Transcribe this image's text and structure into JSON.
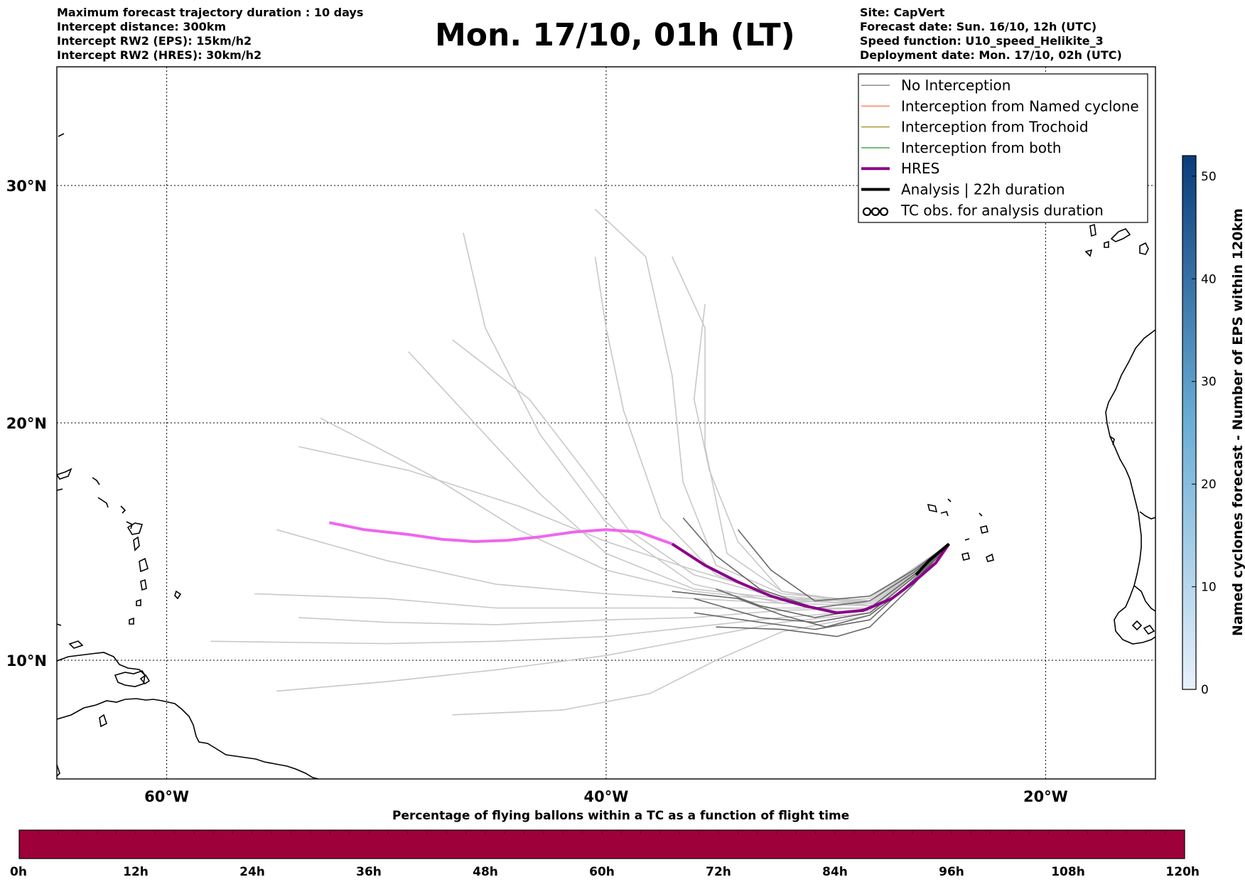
{
  "header_left": [
    "Maximum forecast trajectory duration : 10 days",
    "Intercept distance: 300km",
    "Intercept RW2 (EPS):  15km/h2",
    "Intercept RW2 (HRES): 30km/h2"
  ],
  "title": "Mon. 17/10, 01h (LT)",
  "header_right": [
    "Site: CapVert",
    "Forecast date: Sun. 16/10, 12h (UTC)",
    "Speed function: U10_speed_Helikite_3",
    "Deployment date: Mon. 17/10, 02h (UTC)"
  ],
  "map": {
    "lon_ticks": [
      "60°W",
      "40°W",
      "20°W"
    ],
    "lat_ticks": [
      "30°N",
      "20°N",
      "10°N"
    ],
    "lon_range": [
      -65,
      -15
    ],
    "lat_range": [
      5,
      35
    ],
    "grid_lons": [
      -60,
      -40,
      -20
    ],
    "grid_lats": [
      10,
      20,
      30
    ]
  },
  "legend": [
    {
      "label": "No Interception",
      "color": "#8c8c8c",
      "icon": "line-thin"
    },
    {
      "label": "Interception from Named cyclone",
      "color": "#ff7f50",
      "icon": "line-thin"
    },
    {
      "label": "Interception from Trochoid",
      "color": "#a0902a",
      "icon": "line-thin"
    },
    {
      "label": "Interception from both",
      "color": "#3aa03a",
      "icon": "line-thin"
    },
    {
      "label": "HRES",
      "color": "#8b008b",
      "icon": "line-thick"
    },
    {
      "label": "Analysis | 22h duration",
      "color": "#000000",
      "icon": "line-thick"
    },
    {
      "label": "TC obs. for analysis duration",
      "color": "#000000",
      "icon": "cyclone-symbols"
    }
  ],
  "right_colorbar": {
    "label": "Named cyclones forecast - Number of EPS within 120km",
    "ticks": [
      "0",
      "10",
      "20",
      "30",
      "40",
      "50"
    ],
    "range": [
      0,
      52
    ],
    "color_low": "#e8f1fb",
    "color_high": "#0b3c7a"
  },
  "bottom_colorbar": {
    "title": "Percentage of flying ballons within a TC as a function of flight time",
    "ticks": [
      "0h",
      "12h",
      "24h",
      "36h",
      "48h",
      "60h",
      "72h",
      "84h",
      "96h",
      "108h",
      "120h"
    ],
    "color": "#9e003a"
  },
  "chart_data": {
    "type": "trajectory-map",
    "site": "CapVert",
    "origin": [
      -24.4,
      14.9
    ],
    "hres_track": [
      [
        -52.6,
        15.8
      ],
      [
        -51,
        15.5
      ],
      [
        -49,
        15.3
      ],
      [
        -47.5,
        15.1
      ],
      [
        -46,
        15.0
      ],
      [
        -44.5,
        15.05
      ],
      [
        -43,
        15.2
      ],
      [
        -41.5,
        15.4
      ],
      [
        -40,
        15.5
      ],
      [
        -38.5,
        15.4
      ],
      [
        -37,
        14.9
      ],
      [
        -35.5,
        14.0
      ],
      [
        -34,
        13.3
      ],
      [
        -32.5,
        12.7
      ],
      [
        -31,
        12.3
      ],
      [
        -29.5,
        12.0
      ],
      [
        -28.3,
        12.1
      ],
      [
        -27,
        12.6
      ],
      [
        -26,
        13.3
      ],
      [
        -25,
        14.1
      ],
      [
        -24.4,
        14.9
      ]
    ],
    "analysis_track": [
      [
        -25.9,
        13.6
      ],
      [
        -25.3,
        14.2
      ],
      [
        -24.4,
        14.9
      ]
    ],
    "eps_tracks_light": [
      [
        [
          -24.4,
          14.9
        ],
        [
          -28,
          12.6
        ],
        [
          -32,
          12.4
        ],
        [
          -36,
          13.2
        ],
        [
          -40,
          15.8
        ],
        [
          -43,
          19.5
        ],
        [
          -45.5,
          24
        ],
        [
          -46.5,
          28
        ]
      ],
      [
        [
          -24.4,
          14.9
        ],
        [
          -28,
          12.5
        ],
        [
          -32,
          12.6
        ],
        [
          -35,
          13.6
        ],
        [
          -37.5,
          16
        ],
        [
          -39.2,
          20.5
        ],
        [
          -40,
          24
        ],
        [
          -40.5,
          27
        ]
      ],
      [
        [
          -24.4,
          14.9
        ],
        [
          -28,
          12.5
        ],
        [
          -32,
          12.8
        ],
        [
          -35,
          14
        ],
        [
          -36.5,
          17.5
        ],
        [
          -37,
          22
        ],
        [
          -38.2,
          27
        ],
        [
          -40.5,
          29
        ]
      ],
      [
        [
          -24.4,
          14.9
        ],
        [
          -28,
          12.4
        ],
        [
          -32,
          12.9
        ],
        [
          -34.5,
          14.5
        ],
        [
          -35.5,
          19
        ],
        [
          -35.5,
          24
        ],
        [
          -37,
          27
        ]
      ],
      [
        [
          -24.4,
          14.9
        ],
        [
          -28,
          12.5
        ],
        [
          -32,
          12.6
        ],
        [
          -36,
          13
        ],
        [
          -40,
          14.5
        ],
        [
          -43,
          17
        ],
        [
          -46,
          20
        ],
        [
          -49,
          23
        ]
      ],
      [
        [
          -24.4,
          14.9
        ],
        [
          -28,
          12.4
        ],
        [
          -32,
          12.5
        ],
        [
          -36,
          12.9
        ],
        [
          -40,
          13.8
        ],
        [
          -44,
          15.5
        ],
        [
          -48,
          17.8
        ],
        [
          -53,
          20.2
        ]
      ],
      [
        [
          -24.4,
          14.9
        ],
        [
          -28,
          12.3
        ],
        [
          -32,
          12.4
        ],
        [
          -36,
          12.6
        ],
        [
          -40,
          12.8
        ],
        [
          -45,
          13.2
        ],
        [
          -50,
          14.2
        ],
        [
          -55,
          15.5
        ]
      ],
      [
        [
          -24.4,
          14.9
        ],
        [
          -28,
          12.2
        ],
        [
          -32,
          12.2
        ],
        [
          -36,
          12.2
        ],
        [
          -40,
          12.2
        ],
        [
          -45,
          12.2
        ],
        [
          -50,
          12.6
        ],
        [
          -56,
          12.8
        ]
      ],
      [
        [
          -24.4,
          14.9
        ],
        [
          -28,
          12.1
        ],
        [
          -32,
          11.8
        ],
        [
          -36,
          11.4
        ],
        [
          -40,
          11
        ],
        [
          -45,
          10.8
        ],
        [
          -50,
          10.7
        ],
        [
          -58,
          10.8
        ]
      ],
      [
        [
          -24.4,
          14.9
        ],
        [
          -28,
          12
        ],
        [
          -32,
          11.6
        ],
        [
          -36,
          10.9
        ],
        [
          -40,
          10.2
        ],
        [
          -45,
          9.6
        ],
        [
          -50,
          9.1
        ],
        [
          -55,
          8.7
        ]
      ],
      [
        [
          -24.4,
          14.9
        ],
        [
          -28,
          11.9
        ],
        [
          -32,
          11.2
        ],
        [
          -35,
          10
        ],
        [
          -38,
          8.6
        ],
        [
          -42,
          7.9
        ],
        [
          -47,
          7.7
        ]
      ],
      [
        [
          -24.4,
          14.9
        ],
        [
          -28,
          12.3
        ],
        [
          -32,
          12.6
        ],
        [
          -36,
          13.6
        ],
        [
          -39,
          15.5
        ],
        [
          -41,
          18
        ],
        [
          -43.5,
          21
        ],
        [
          -47,
          23.5
        ]
      ],
      [
        [
          -24.4,
          14.9
        ],
        [
          -28,
          12.4
        ],
        [
          -32,
          12.7
        ],
        [
          -36,
          13.8
        ],
        [
          -40,
          15
        ],
        [
          -44,
          16.5
        ],
        [
          -49,
          18
        ],
        [
          -54,
          19
        ]
      ],
      [
        [
          -24.4,
          14.9
        ],
        [
          -28,
          12.2
        ],
        [
          -32,
          12.1
        ],
        [
          -36,
          11.8
        ],
        [
          -40,
          11.7
        ],
        [
          -45,
          11.5
        ],
        [
          -50,
          11.6
        ],
        [
          -54,
          11.8
        ]
      ],
      [
        [
          -24.4,
          14.9
        ],
        [
          -28,
          12.3
        ],
        [
          -32,
          12.9
        ],
        [
          -34,
          15
        ],
        [
          -35.3,
          18
        ],
        [
          -36,
          21
        ],
        [
          -35.5,
          25
        ]
      ]
    ],
    "eps_tracks_dark": [
      [
        [
          -24.4,
          14.9
        ],
        [
          -26,
          13.6
        ],
        [
          -28,
          12.2
        ],
        [
          -30.5,
          11.8
        ],
        [
          -33,
          12.3
        ],
        [
          -35,
          13
        ]
      ],
      [
        [
          -24.4,
          14.9
        ],
        [
          -26,
          13.5
        ],
        [
          -28,
          12
        ],
        [
          -30.5,
          11.6
        ],
        [
          -33,
          11.8
        ],
        [
          -36,
          12.6
        ]
      ],
      [
        [
          -24.4,
          14.9
        ],
        [
          -26,
          13.4
        ],
        [
          -28,
          11.7
        ],
        [
          -30.5,
          11.3
        ],
        [
          -33,
          11.6
        ],
        [
          -36,
          12
        ]
      ],
      [
        [
          -24.4,
          14.9
        ],
        [
          -26,
          13.2
        ],
        [
          -28,
          11.4
        ],
        [
          -29.5,
          11
        ],
        [
          -32,
          11.3
        ],
        [
          -35,
          11.4
        ]
      ],
      [
        [
          -24.4,
          14.9
        ],
        [
          -26,
          13.7
        ],
        [
          -28,
          12.5
        ],
        [
          -30.5,
          12.2
        ],
        [
          -33,
          13
        ],
        [
          -35,
          14.4
        ],
        [
          -36.5,
          16
        ]
      ],
      [
        [
          -24.4,
          14.9
        ],
        [
          -26,
          13.8
        ],
        [
          -28,
          12.7
        ],
        [
          -30.5,
          12.5
        ],
        [
          -32.5,
          13.8
        ],
        [
          -34,
          15.5
        ]
      ],
      [
        [
          -24.4,
          14.9
        ],
        [
          -26,
          13.3
        ],
        [
          -28,
          11.9
        ],
        [
          -30,
          11.4
        ],
        [
          -32,
          11.9
        ],
        [
          -34,
          12.6
        ],
        [
          -37,
          12.9
        ]
      ]
    ]
  }
}
